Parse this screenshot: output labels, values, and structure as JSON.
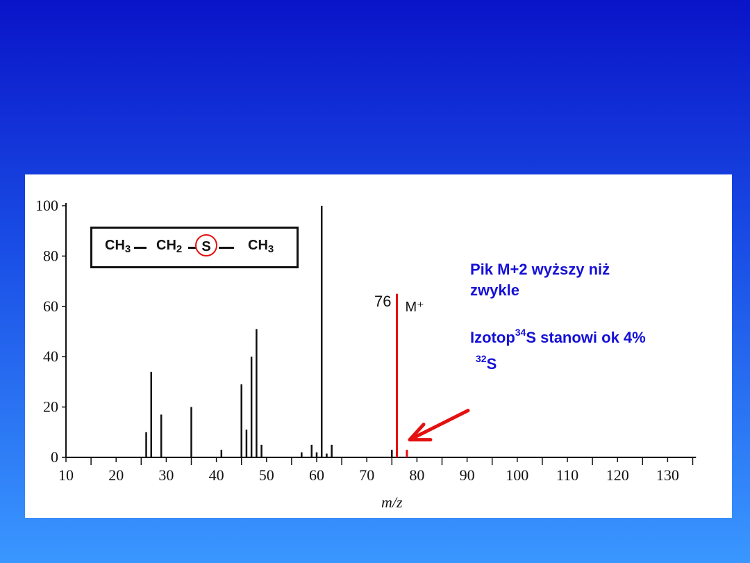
{
  "colors": {
    "background_top": "#0a14c8",
    "background_bottom": "#3a97ff",
    "panel": "#ffffff",
    "bars": "#111111",
    "highlight": "#e41010",
    "annotation": "#1510d6"
  },
  "formula": {
    "g1": "CH",
    "s1": "3",
    "g2": "CH",
    "s2": "2",
    "atom": "S",
    "g3": "CH",
    "s3": "3"
  },
  "annotation": {
    "line1": "Pik M+2 wyższy niż",
    "line2": "zwykle",
    "line3_prefix": "Izotop",
    "line3_sup": "34",
    "line3_suffix": "S stanowi ok 4%",
    "line4_sup": "32",
    "line4_suffix": "S"
  },
  "chart_data": {
    "type": "bar",
    "title": "",
    "xlabel": "m/z",
    "ylabel": "",
    "xlim": [
      10,
      134
    ],
    "ylim": [
      0,
      100
    ],
    "xticks": [
      10,
      20,
      30,
      40,
      50,
      60,
      70,
      80,
      90,
      100,
      110,
      120,
      130
    ],
    "yticks": [
      0,
      20,
      40,
      60,
      80,
      100
    ],
    "series": [
      {
        "color": "#111111",
        "x": [
          26,
          27,
          29,
          35,
          41,
          45,
          46,
          47,
          48,
          49,
          57,
          59,
          60,
          61,
          62,
          63,
          75
        ],
        "values": [
          10,
          34,
          17,
          20,
          3,
          29,
          11,
          40,
          51,
          5,
          2,
          5,
          2,
          100,
          1.5,
          5,
          3
        ]
      },
      {
        "color": "#e41010",
        "x": [
          76,
          78
        ],
        "values": [
          65,
          3
        ]
      }
    ],
    "annotations": [
      {
        "text": "76",
        "x": 76
      },
      {
        "text": "M⁺",
        "x": 76
      }
    ]
  }
}
